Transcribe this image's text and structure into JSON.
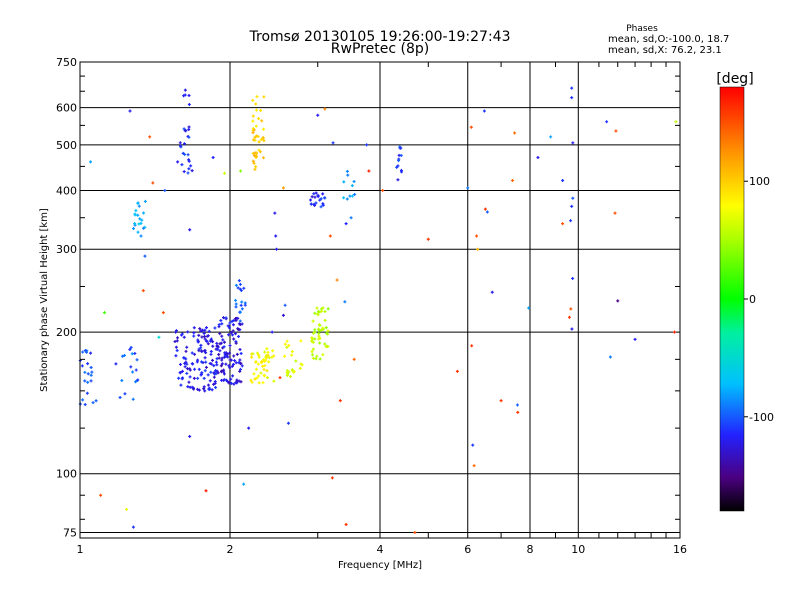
{
  "chart_data": {
    "type": "scatter",
    "title": "Tromsø 20130105 19:26:00-19:27:43",
    "subtitle": "RwPretec (8p)",
    "xlabel": "Frequency [MHz]",
    "ylabel": "Stationary phase Virtual Height [km]",
    "x_scale": "log",
    "y_scale": "log",
    "xlim": [
      1,
      16
    ],
    "ylim": [
      73,
      750
    ],
    "x_ticks": [
      1,
      2,
      4,
      6,
      8,
      10,
      16
    ],
    "x_tick_labels": [
      "1",
      "2",
      "4",
      "6",
      "8",
      "10",
      "16"
    ],
    "x_minor_ticks": [
      3,
      5,
      7,
      9,
      11,
      12,
      13,
      14,
      15
    ],
    "y_ticks": [
      75,
      100,
      200,
      300,
      400,
      500,
      600,
      750
    ],
    "y_tick_labels": [
      "75",
      "100",
      "200",
      "300",
      "400",
      "500",
      "600",
      "750"
    ],
    "y_minor_ticks": [
      80,
      90,
      125,
      150,
      175,
      250,
      350,
      450,
      550,
      650,
      700
    ],
    "grid": true,
    "phases_legend": {
      "heading": "Phases",
      "line1": "mean, sd,O:-100.0, 18.7",
      "line2": "mean, sd,X: 76.2, 23.1"
    },
    "colorbar": {
      "label": "[deg]",
      "range": [
        -180,
        180
      ],
      "ticks": [
        100,
        0,
        -100
      ],
      "tick_labels": [
        "100",
        "0",
        "-100"
      ]
    },
    "clusters": [
      {
        "fx": [
          1.0,
          1.08
        ],
        "hy": [
          140,
          185
        ],
        "ph": -105,
        "n": 22
      },
      {
        "fx": [
          1.18,
          1.32
        ],
        "hy": [
          140,
          190
        ],
        "ph": -100,
        "n": 18
      },
      {
        "fx": [
          1.28,
          1.36
        ],
        "hy": [
          320,
          380
        ],
        "ph": -75,
        "n": 20
      },
      {
        "fx": [
          1.58,
          1.68
        ],
        "hy": [
          430,
          560
        ],
        "ph": -115,
        "n": 22
      },
      {
        "fx": [
          1.6,
          1.68
        ],
        "hy": [
          600,
          665
        ],
        "ph": -115,
        "n": 5
      },
      {
        "fx": [
          1.55,
          1.88
        ],
        "hy": [
          150,
          205
        ],
        "ph": -120,
        "n": 130
      },
      {
        "fx": [
          1.88,
          2.12
        ],
        "hy": [
          155,
          215
        ],
        "ph": -125,
        "n": 110
      },
      {
        "fx": [
          2.05,
          2.15
        ],
        "hy": [
          210,
          258
        ],
        "ph": -95,
        "n": 18
      },
      {
        "fx": [
          2.22,
          2.34
        ],
        "hy": [
          430,
          640
        ],
        "ph": 100,
        "n": 40
      },
      {
        "fx": [
          2.2,
          2.45
        ],
        "hy": [
          155,
          185
        ],
        "ph": 80,
        "n": 45
      },
      {
        "fx": [
          2.55,
          2.8
        ],
        "hy": [
          160,
          195
        ],
        "ph": 70,
        "n": 22
      },
      {
        "fx": [
          2.9,
          3.15
        ],
        "hy": [
          175,
          225
        ],
        "ph": 55,
        "n": 50
      },
      {
        "fx": [
          2.9,
          3.1
        ],
        "hy": [
          368,
          400
        ],
        "ph": -115,
        "n": 20
      },
      {
        "fx": [
          3.35,
          3.6
        ],
        "hy": [
          375,
          440
        ],
        "ph": -80,
        "n": 10
      },
      {
        "fx": [
          4.3,
          4.42
        ],
        "hy": [
          420,
          495
        ],
        "ph": -110,
        "n": 12
      }
    ],
    "points": [
      [
        1.05,
        460,
        -80
      ],
      [
        1.26,
        590,
        -120
      ],
      [
        1.12,
        220,
        20
      ],
      [
        1.4,
        415,
        150
      ],
      [
        1.34,
        245,
        150
      ],
      [
        1.48,
        400,
        -100
      ],
      [
        1.44,
        195,
        -50
      ],
      [
        1.66,
        120,
        -120
      ],
      [
        1.66,
        330,
        -120
      ],
      [
        1.85,
        470,
        -115
      ],
      [
        1.1,
        90,
        150
      ],
      [
        1.24,
        84,
        70
      ],
      [
        1.28,
        77,
        -110
      ],
      [
        1.79,
        92,
        170
      ],
      [
        2.13,
        95,
        -80
      ],
      [
        1.35,
        290,
        -100
      ],
      [
        1.38,
        520,
        150
      ],
      [
        2.18,
        125,
        -120
      ],
      [
        2.52,
        160,
        160
      ],
      [
        2.43,
        200,
        -120
      ],
      [
        2.48,
        300,
        -120
      ],
      [
        2.47,
        320,
        -120
      ],
      [
        2.46,
        358,
        -120
      ],
      [
        2.56,
        405,
        120
      ],
      [
        2.62,
        128,
        -110
      ],
      [
        3.0,
        578,
        -120
      ],
      [
        3.1,
        596,
        130
      ],
      [
        3.22,
        505,
        -110
      ],
      [
        3.28,
        258,
        130
      ],
      [
        3.33,
        143,
        160
      ],
      [
        3.4,
        232,
        -90
      ],
      [
        3.42,
        340,
        -115
      ],
      [
        3.55,
        175,
        140
      ],
      [
        3.18,
        320,
        150
      ],
      [
        3.5,
        350,
        -90
      ],
      [
        3.76,
        500,
        -110
      ],
      [
        3.8,
        440,
        170
      ],
      [
        4.05,
        400,
        150
      ],
      [
        3.21,
        98,
        160
      ],
      [
        3.42,
        78,
        160
      ],
      [
        4.7,
        75,
        150
      ],
      [
        5.0,
        315,
        160
      ],
      [
        5.72,
        165,
        160
      ],
      [
        6.0,
        405,
        -90
      ],
      [
        6.1,
        545,
        150
      ],
      [
        6.25,
        320,
        150
      ],
      [
        6.28,
        300,
        110
      ],
      [
        6.11,
        187,
        160
      ],
      [
        6.14,
        115,
        -110
      ],
      [
        6.18,
        104,
        140
      ],
      [
        6.48,
        590,
        -110
      ],
      [
        6.57,
        360,
        -100
      ],
      [
        6.51,
        365,
        160
      ],
      [
        6.72,
        243,
        -120
      ],
      [
        7.0,
        143,
        160
      ],
      [
        7.38,
        420,
        140
      ],
      [
        7.45,
        530,
        140
      ],
      [
        7.56,
        135,
        160
      ],
      [
        7.55,
        140,
        -100
      ],
      [
        7.95,
        225,
        -80
      ],
      [
        8.3,
        470,
        -120
      ],
      [
        8.8,
        520,
        -80
      ],
      [
        9.3,
        420,
        -110
      ],
      [
        9.3,
        340,
        150
      ],
      [
        9.6,
        215,
        160
      ],
      [
        9.65,
        345,
        -110
      ],
      [
        9.7,
        370,
        -110
      ],
      [
        9.75,
        385,
        -100
      ],
      [
        9.74,
        260,
        -110
      ],
      [
        9.71,
        203,
        -120
      ],
      [
        9.7,
        660,
        -110
      ],
      [
        9.7,
        630,
        -110
      ],
      [
        9.75,
        505,
        -120
      ],
      [
        9.66,
        224,
        150
      ],
      [
        11.4,
        560,
        -110
      ],
      [
        11.6,
        177,
        -90
      ],
      [
        11.9,
        535,
        150
      ],
      [
        11.85,
        358,
        150
      ],
      [
        12.0,
        233,
        -150
      ],
      [
        13.0,
        193,
        -120
      ],
      [
        15.6,
        200,
        170
      ],
      [
        15.7,
        560,
        60
      ],
      [
        1.47,
        220,
        150
      ],
      [
        1.57,
        460,
        -120
      ],
      [
        1.95,
        435,
        60
      ],
      [
        2.1,
        440,
        40
      ],
      [
        2.56,
        217,
        -130
      ],
      [
        2.58,
        228,
        -100
      ]
    ]
  }
}
